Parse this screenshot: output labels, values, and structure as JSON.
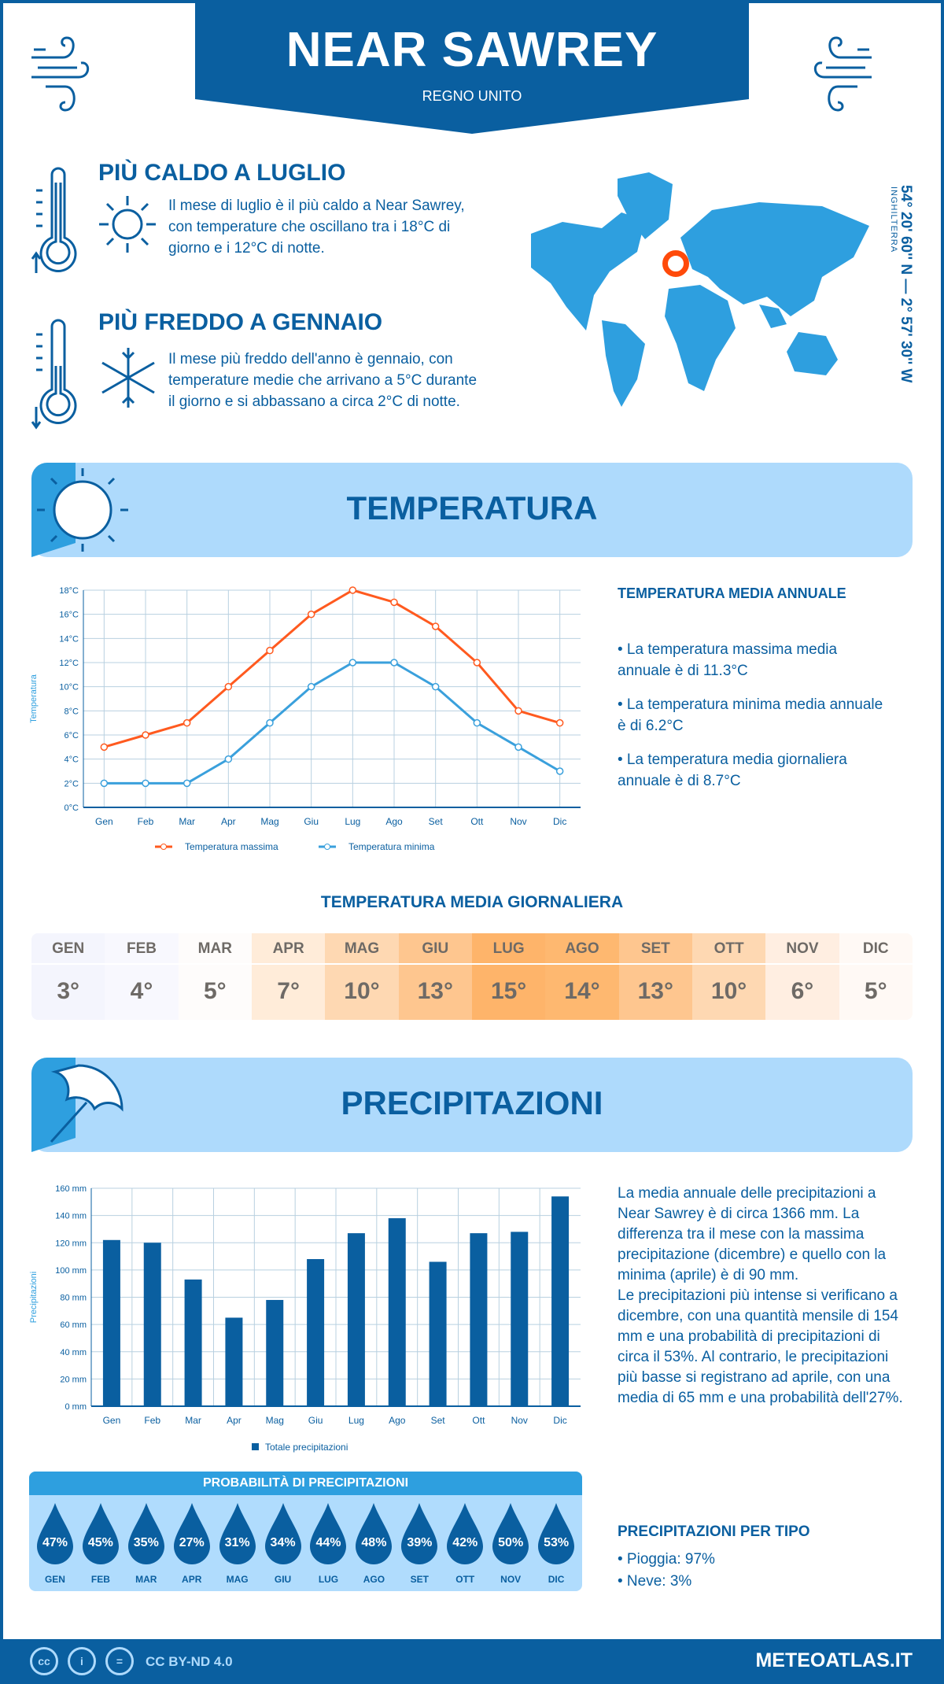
{
  "header": {
    "title": "NEAR SAWREY",
    "subtitle": "REGNO UNITO"
  },
  "hot": {
    "title": "PIÙ CALDO A LUGLIO",
    "text": "Il mese di luglio è il più caldo a Near Sawrey, con temperature che oscillano tra i 18°C di giorno e i 12°C di notte."
  },
  "cold": {
    "title": "PIÙ FREDDO A GENNAIO",
    "text": "Il mese più freddo dell'anno è gennaio, con temperature medie che arrivano a 5°C durante il giorno e si abbassano a circa 2°C di notte."
  },
  "map": {
    "coords": "54° 20' 60'' N — 2° 57' 30'' W",
    "region": "INGHILTERRA",
    "marker_color": "#ff4a0a"
  },
  "colors": {
    "primary": "#0a5fa0",
    "light": "#aedafc",
    "max": "#ff5a1f",
    "min": "#3aa0dc"
  },
  "temperature": {
    "banner": "TEMPERATURA",
    "annual_heading": "TEMPERATURA MEDIA ANNUALE",
    "bullets": [
      "• La temperatura massima media annuale è di 11.3°C",
      "• La temperatura minima media annuale è di 6.2°C",
      "• La temperatura media giornaliera annuale è di 8.7°C"
    ],
    "daily_heading": "TEMPERATURA MEDIA GIORNALIERA",
    "daily": [
      {
        "m": "GEN",
        "v": "3°",
        "c": "#f4f5fd"
      },
      {
        "m": "FEB",
        "v": "4°",
        "c": "#f8f8fe"
      },
      {
        "m": "MAR",
        "v": "5°",
        "c": "#fefcfb"
      },
      {
        "m": "APR",
        "v": "7°",
        "c": "#ffecd9"
      },
      {
        "m": "MAG",
        "v": "10°",
        "c": "#fed8b2"
      },
      {
        "m": "GIU",
        "v": "13°",
        "c": "#fec68f"
      },
      {
        "m": "LUG",
        "v": "15°",
        "c": "#feb46a"
      },
      {
        "m": "AGO",
        "v": "14°",
        "c": "#feb870"
      },
      {
        "m": "SET",
        "v": "13°",
        "c": "#fec68f"
      },
      {
        "m": "OTT",
        "v": "10°",
        "c": "#fed8b2"
      },
      {
        "m": "NOV",
        "v": "6°",
        "c": "#ffeee1"
      },
      {
        "m": "DIC",
        "v": "5°",
        "c": "#fff9f5"
      }
    ]
  },
  "chart_data": [
    {
      "type": "line",
      "categories": [
        "Gen",
        "Feb",
        "Mar",
        "Apr",
        "Mag",
        "Giu",
        "Lug",
        "Ago",
        "Set",
        "Ott",
        "Nov",
        "Dic"
      ],
      "ylabel": "Temperatura",
      "ylim": [
        0,
        18
      ],
      "yticks": [
        "0°C",
        "2°C",
        "4°C",
        "6°C",
        "8°C",
        "10°C",
        "12°C",
        "14°C",
        "16°C",
        "18°C"
      ],
      "grid": true,
      "legend": "bottom",
      "series": [
        {
          "name": "Temperatura massima",
          "color": "#ff5a1f",
          "values": [
            5,
            6,
            7,
            10,
            13,
            16,
            18,
            17,
            15,
            12,
            8,
            7
          ]
        },
        {
          "name": "Temperatura minima",
          "color": "#3aa0dc",
          "values": [
            2,
            2,
            2,
            4,
            7,
            10,
            12,
            12,
            10,
            7,
            5,
            3
          ]
        }
      ]
    },
    {
      "type": "bar",
      "categories": [
        "Gen",
        "Feb",
        "Mar",
        "Apr",
        "Mag",
        "Giu",
        "Lug",
        "Ago",
        "Set",
        "Ott",
        "Nov",
        "Dic"
      ],
      "ylabel": "Precipitazioni",
      "ylim": [
        0,
        160
      ],
      "yticks": [
        "0 mm",
        "20 mm",
        "40 mm",
        "60 mm",
        "80 mm",
        "100 mm",
        "120 mm",
        "140 mm",
        "160 mm"
      ],
      "grid": true,
      "legend": "bottom",
      "series": [
        {
          "name": "Totale precipitazioni",
          "color": "#0a5fa0",
          "values": [
            122,
            120,
            93,
            65,
            78,
            108,
            127,
            138,
            106,
            127,
            128,
            154
          ]
        }
      ]
    }
  ],
  "precipitation": {
    "banner": "PRECIPITAZIONI",
    "para1": "La media annuale delle precipitazioni a Near Sawrey è di circa 1366 mm. La differenza tra il mese con la massima precipitazione (dicembre) e quello con la minima (aprile) è di 90 mm.",
    "para2": "Le precipitazioni più intense si verificano a dicembre, con una quantità mensile di 154 mm e una probabilità di precipitazioni di circa il 53%. Al contrario, le precipitazioni più basse si registrano ad aprile, con una media di 65 mm e una probabilità dell'27%.",
    "prob_heading": "PROBABILITÀ DI PRECIPITAZIONI",
    "prob": [
      {
        "m": "GEN",
        "v": "47%"
      },
      {
        "m": "FEB",
        "v": "45%"
      },
      {
        "m": "MAR",
        "v": "35%"
      },
      {
        "m": "APR",
        "v": "27%"
      },
      {
        "m": "MAG",
        "v": "31%"
      },
      {
        "m": "GIU",
        "v": "34%"
      },
      {
        "m": "LUG",
        "v": "44%"
      },
      {
        "m": "AGO",
        "v": "48%"
      },
      {
        "m": "SET",
        "v": "39%"
      },
      {
        "m": "OTT",
        "v": "42%"
      },
      {
        "m": "NOV",
        "v": "50%"
      },
      {
        "m": "DIC",
        "v": "53%"
      }
    ],
    "type_heading": "PRECIPITAZIONI PER TIPO",
    "types": [
      "• Pioggia: 97%",
      "• Neve: 3%"
    ]
  },
  "footer": {
    "license": "CC BY-ND 4.0",
    "site": "METEOATLAS.IT",
    "icons": [
      "cc-icon",
      "by-icon",
      "nd-icon"
    ]
  }
}
